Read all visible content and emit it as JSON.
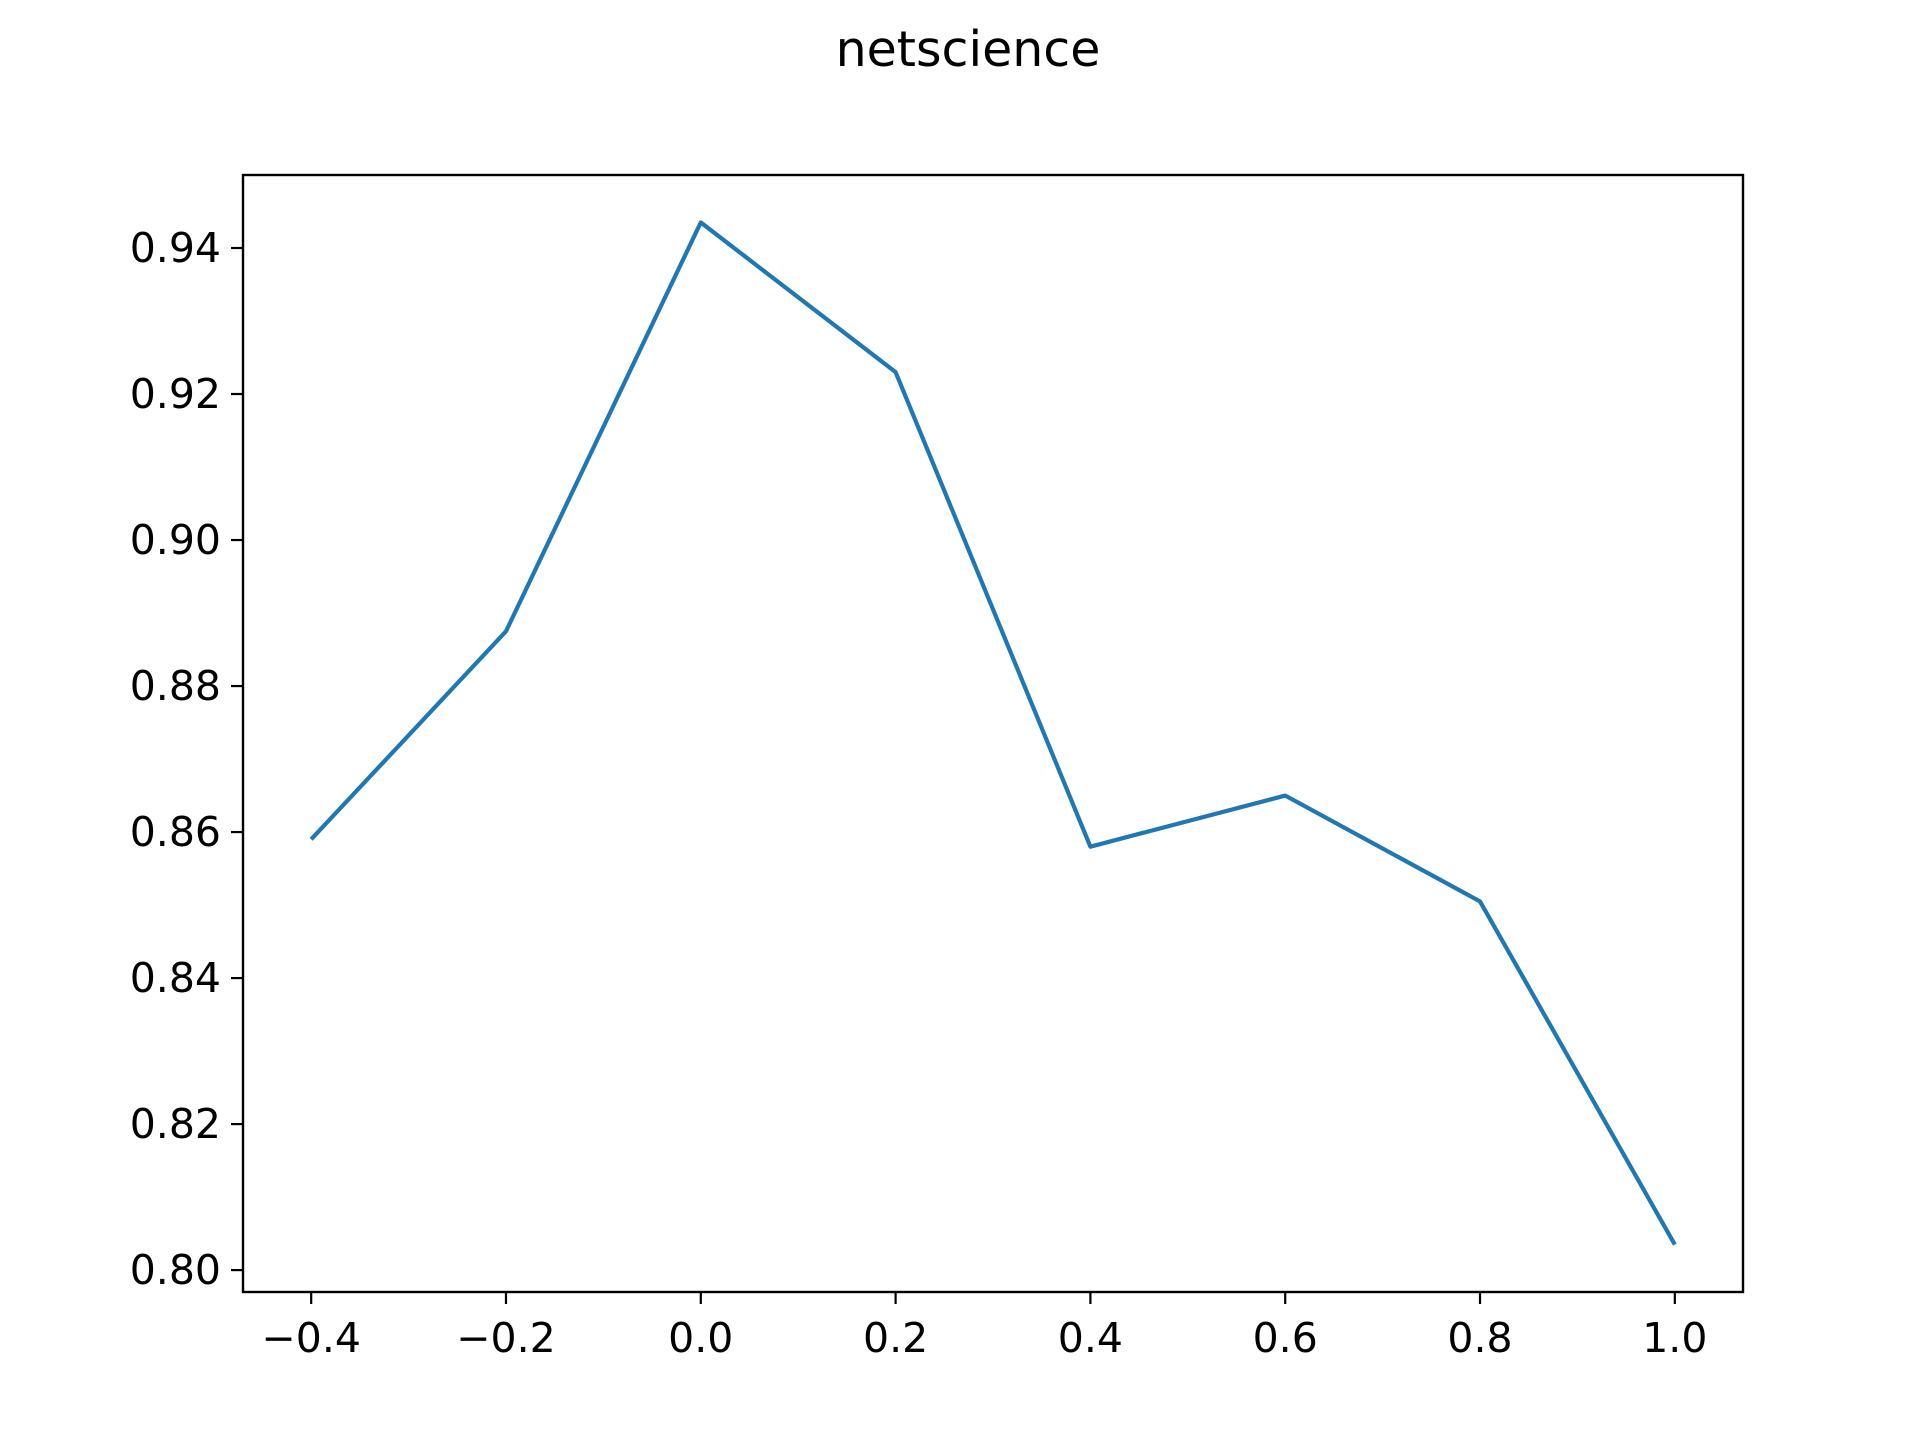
{
  "chart_data": {
    "type": "line",
    "title": "netscience",
    "xlabel": "",
    "ylabel": "",
    "x": [
      -0.4,
      -0.2,
      0.0,
      0.2,
      0.4,
      0.6,
      0.8,
      1.0
    ],
    "series": [
      {
        "values": [
          0.859,
          0.8875,
          0.9435,
          0.923,
          0.858,
          0.865,
          0.8505,
          0.8035
        ],
        "color": "#1f77b4"
      }
    ],
    "xlim": [
      -0.47,
      1.07
    ],
    "ylim": [
      0.797,
      0.95
    ],
    "xticks": [
      -0.4,
      -0.2,
      0.0,
      0.2,
      0.4,
      0.6,
      0.8,
      1.0
    ],
    "xtick_labels": [
      "−0.4",
      "−0.2",
      "0.0",
      "0.2",
      "0.4",
      "0.6",
      "0.8",
      "1.0"
    ],
    "yticks": [
      0.8,
      0.82,
      0.84,
      0.86,
      0.88,
      0.9,
      0.92,
      0.94
    ],
    "ytick_labels": [
      "0.80",
      "0.82",
      "0.84",
      "0.86",
      "0.88",
      "0.90",
      "0.92",
      "0.94"
    ],
    "grid": false,
    "legend": "none"
  }
}
